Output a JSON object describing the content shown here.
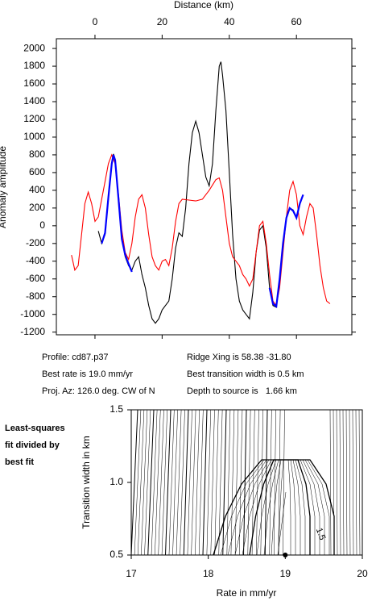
{
  "chart_data": [
    {
      "type": "line",
      "xlabel": "Distance (km)",
      "ylabel": "Anomaly amplitude",
      "xlim": [
        -11.5,
        76.5
      ],
      "ylim": [
        -1230,
        2110
      ],
      "xticks": [
        0,
        20,
        40,
        60
      ],
      "yticks": [
        2000,
        1800,
        1600,
        1400,
        1200,
        1000,
        800,
        600,
        400,
        200,
        0,
        -200,
        -400,
        -600,
        -800,
        -1000,
        -1200
      ],
      "series": [
        {
          "color": "#000000",
          "x": [
            1,
            2,
            3,
            4,
            5,
            5.5,
            6,
            7,
            8,
            9,
            10,
            11,
            12,
            13,
            14,
            15,
            16,
            17,
            18,
            19,
            20,
            21,
            22,
            23,
            24,
            25,
            26,
            27,
            28,
            29,
            30,
            31,
            32,
            33,
            34,
            35,
            36,
            37,
            37.5,
            38,
            39,
            40,
            41,
            42,
            43,
            44,
            45,
            46,
            47,
            48,
            49,
            50,
            51,
            52,
            53,
            54,
            55,
            56,
            57,
            58,
            59,
            60,
            61,
            62
          ],
          "values": [
            -60,
            -200,
            -100,
            300,
            700,
            810,
            750,
            300,
            -150,
            -350,
            -450,
            -500,
            -400,
            -350,
            -550,
            -700,
            -900,
            -1050,
            -1100,
            -1050,
            -950,
            -900,
            -850,
            -600,
            -250,
            -80,
            -120,
            200,
            700,
            1050,
            1180,
            1050,
            800,
            550,
            450,
            700,
            1300,
            1800,
            1850,
            1700,
            1300,
            600,
            -100,
            -600,
            -850,
            -950,
            -1000,
            -1050,
            -750,
            -300,
            -50,
            0,
            -250,
            -700,
            -900,
            -920,
            -600,
            -200,
            100,
            200,
            180,
            100,
            250,
            350
          ]
        },
        {
          "color": "#ff0000",
          "x": [
            -7,
            -6,
            -5,
            -4,
            -3,
            -2,
            -1,
            0,
            1,
            2,
            3,
            4,
            5,
            6,
            7,
            8,
            9,
            10,
            11,
            12,
            13,
            14,
            15,
            16,
            17,
            18,
            19,
            20,
            21,
            22,
            23,
            24,
            25,
            26,
            28,
            30,
            32,
            34,
            36,
            37,
            38,
            39,
            40,
            41,
            42,
            43,
            44,
            45,
            46,
            47,
            48,
            49,
            50,
            51,
            52,
            53,
            54,
            55,
            56,
            57,
            58,
            59,
            60,
            61,
            62,
            63,
            64,
            65,
            66,
            67,
            68,
            69,
            70
          ],
          "values": [
            -330,
            -500,
            -450,
            -100,
            250,
            380,
            250,
            50,
            100,
            300,
            500,
            700,
            800,
            700,
            350,
            -50,
            -300,
            -380,
            -200,
            100,
            300,
            350,
            200,
            -100,
            -350,
            -450,
            -500,
            -400,
            -380,
            -450,
            -250,
            50,
            250,
            300,
            290,
            280,
            300,
            400,
            520,
            540,
            400,
            100,
            -200,
            -350,
            -400,
            -450,
            -550,
            -600,
            -680,
            -600,
            -300,
            0,
            50,
            -200,
            -550,
            -850,
            -900,
            -700,
            -300,
            100,
            400,
            500,
            350,
            0,
            -100,
            100,
            250,
            200,
            -100,
            -450,
            -700,
            -850,
            -880
          ]
        },
        {
          "color": "#0000ff",
          "x": [
            2,
            3,
            4,
            5,
            5.5,
            6,
            7,
            8,
            9,
            10,
            11
          ],
          "values": [
            -200,
            -80,
            320,
            700,
            800,
            740,
            300,
            -150,
            -330,
            -430,
            -520
          ]
        },
        {
          "color": "#0000ff",
          "x": [
            52,
            53,
            54,
            55,
            56,
            57,
            58,
            59,
            60,
            61,
            62
          ],
          "values": [
            -700,
            -880,
            -910,
            -600,
            -200,
            90,
            200,
            170,
            90,
            250,
            350
          ]
        }
      ]
    },
    {
      "type": "contour",
      "title": [
        "Least-squares",
        "fit divided by",
        "best fit"
      ],
      "xlabel": "Rate in mm/yr",
      "ylabel": "Transition width in km",
      "xlim": [
        17,
        20
      ],
      "ylim": [
        0.5,
        1.5
      ],
      "xticks": [
        17,
        18,
        19,
        20
      ],
      "yticks": [
        {
          "value": 0.5,
          "label": "0.5"
        },
        {
          "value": 1.0,
          "label": "1.0"
        },
        {
          "value": 1.5,
          "label": "1.5"
        }
      ],
      "best": {
        "x": 19,
        "y": 0.5
      },
      "annotation": "1.5"
    }
  ],
  "info": [
    [
      "Profile: cd87.p37",
      "Ridge Xing is 58.38 -31.80"
    ],
    [
      "Best rate is 19.0 mm/yr",
      "Best transition width is 0.5 km"
    ],
    [
      "Proj. Az: 126.0 deg. CW of N",
      "Depth to source is   1.66 km"
    ]
  ]
}
